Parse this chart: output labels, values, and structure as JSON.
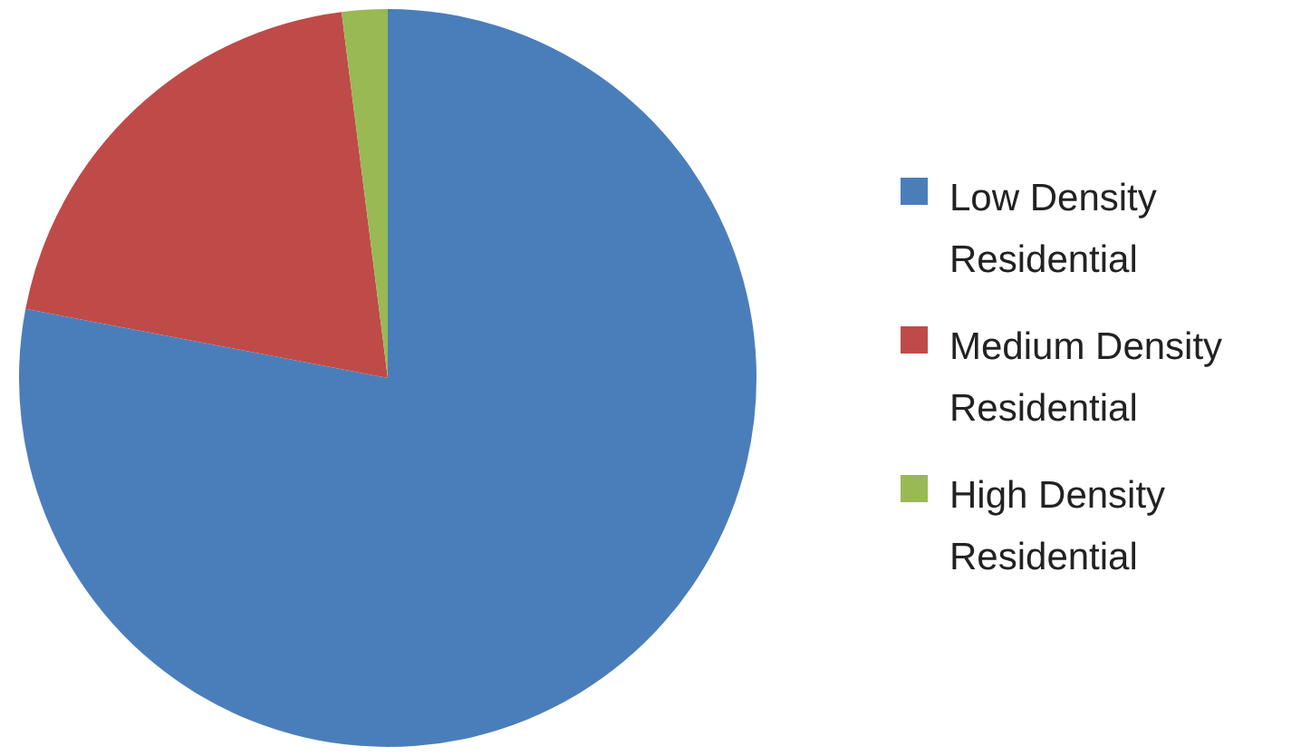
{
  "chart_data": {
    "type": "pie",
    "categories": [
      "Low Density Residential",
      "Medium Density Residential",
      "High Density Residential"
    ],
    "values": [
      78,
      20,
      2
    ],
    "colors": [
      "#4a7ebb",
      "#be4b48",
      "#98b954"
    ],
    "legend": "right"
  }
}
